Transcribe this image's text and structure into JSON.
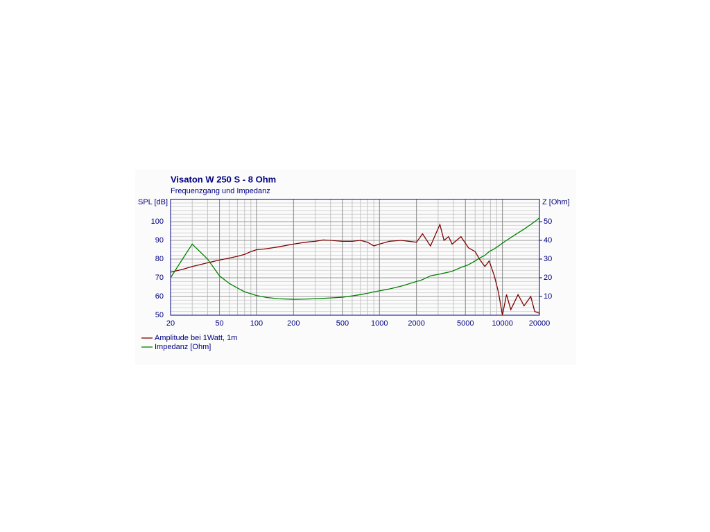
{
  "chart_data": {
    "type": "line",
    "title": "Visaton W 250 S - 8 Ohm",
    "subtitle": "Frequenzgang und Impedanz",
    "y_label": "SPL [dB]",
    "y2_label": "Z [Ohm]",
    "xscale": "log",
    "grid": true,
    "legend": "bottom-left",
    "xlim": [
      20,
      20000
    ],
    "xticks": [
      20,
      50,
      100,
      200,
      500,
      1000,
      2000,
      5000,
      10000,
      20000
    ],
    "x_minor_grid": [
      30,
      40,
      60,
      70,
      80,
      90,
      300,
      400,
      600,
      700,
      800,
      900,
      3000,
      4000,
      6000,
      7000,
      8000,
      9000
    ],
    "ylim": [
      50,
      112
    ],
    "yticks": [
      50,
      60,
      70,
      80,
      90,
      100
    ],
    "y_minor_grid": [
      52,
      54,
      56,
      58,
      62,
      64,
      66,
      68,
      72,
      74,
      76,
      78,
      82,
      84,
      86,
      88,
      92,
      94,
      96,
      98,
      102,
      104,
      106,
      108,
      110
    ],
    "y2lim": [
      0,
      62
    ],
    "y2ticks": [
      10,
      20,
      30,
      40,
      50
    ],
    "x": [
      20,
      25,
      30,
      40,
      50,
      60,
      70,
      80,
      90,
      100,
      120,
      150,
      200,
      250,
      300,
      350,
      400,
      500,
      600,
      700,
      800,
      900,
      1000,
      1200,
      1500,
      2000,
      2240,
      2600,
      3100,
      3350,
      3650,
      3900,
      4600,
      5300,
      6000,
      6500,
      7200,
      7800,
      8600,
      9300,
      10000,
      10800,
      11700,
      13400,
      15000,
      17000,
      18300,
      20000
    ],
    "series": [
      {
        "name": "Amplitude bei 1Watt, 1m",
        "color": "#800000",
        "values": [
          73,
          74.5,
          76,
          78,
          79.5,
          80.5,
          81.5,
          82.5,
          84,
          85,
          85.5,
          86.5,
          88,
          89,
          89.5,
          90.2,
          90,
          89.5,
          89.5,
          90,
          89,
          87,
          88,
          89.5,
          90,
          89,
          93.5,
          87,
          98.5,
          90,
          92,
          88,
          92,
          86,
          84,
          80,
          76,
          79,
          71,
          62,
          50,
          61,
          53,
          61,
          55,
          60,
          52,
          51
        ]
      },
      {
        "name": "Impedanz [Ohm]",
        "color": "#008000",
        "axis": "y2",
        "values": [
          20,
          30,
          38,
          30,
          21,
          17,
          14.5,
          12.5,
          11.5,
          10.5,
          9.5,
          8.8,
          8.5,
          8.6,
          8.8,
          9,
          9.2,
          9.6,
          10.3,
          11,
          11.7,
          12.5,
          13,
          14,
          15.5,
          18,
          19,
          21,
          22,
          22.5,
          23,
          23.5,
          25.5,
          27,
          29,
          30.5,
          32,
          34,
          35.5,
          37,
          38.5,
          40,
          41.5,
          44,
          46,
          48.5,
          50,
          52
        ]
      }
    ]
  }
}
